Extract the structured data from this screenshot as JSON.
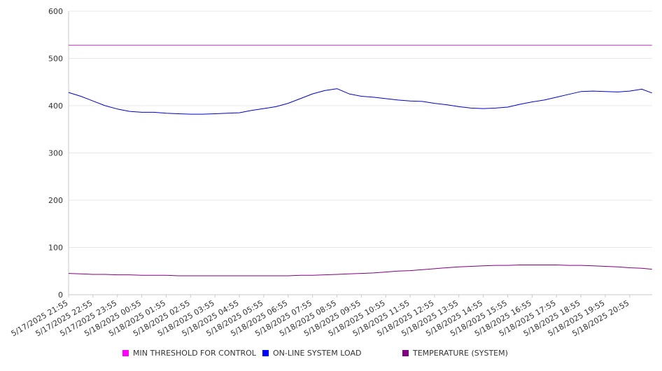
{
  "chart_data": {
    "type": "line",
    "ylim": [
      0,
      600
    ],
    "y_ticks": [
      0,
      100,
      200,
      300,
      400,
      500,
      600
    ],
    "y_tick_labels": [
      "0",
      "100",
      "200",
      "300",
      "400",
      "500",
      "600"
    ],
    "grid": true,
    "legend_position": "bottom",
    "x_tick_labels": [
      "5/17/2025 21:55",
      "5/17/2025 22:55",
      "5/17/2025 23:55",
      "5/18/2025 00:55",
      "5/18/2025 01:55",
      "5/18/2025 02:55",
      "5/18/2025 03:55",
      "5/18/2025 04:55",
      "5/18/2025 05:55",
      "5/18/2025 06:55",
      "5/18/2025 07:55",
      "5/18/2025 08:55",
      "5/18/2025 09:55",
      "5/18/2025 10:55",
      "5/18/2025 11:55",
      "5/18/2025 12:55",
      "5/18/2025 13:55",
      "5/18/2025 14:55",
      "5/18/2025 15:55",
      "5/18/2025 16:55",
      "5/18/2025 17:55",
      "5/18/2025 18:55",
      "5/18/2025 19:55",
      "5/18/2025 20:55"
    ],
    "x": [
      "5/17/2025 21:55",
      "5/17/2025 22:25",
      "5/17/2025 22:55",
      "5/17/2025 23:25",
      "5/17/2025 23:55",
      "5/18/2025 00:25",
      "5/18/2025 00:55",
      "5/18/2025 01:25",
      "5/18/2025 01:55",
      "5/18/2025 02:25",
      "5/18/2025 02:55",
      "5/18/2025 03:25",
      "5/18/2025 03:55",
      "5/18/2025 04:25",
      "5/18/2025 04:55",
      "5/18/2025 05:25",
      "5/18/2025 05:55",
      "5/18/2025 06:25",
      "5/18/2025 06:55",
      "5/18/2025 07:25",
      "5/18/2025 07:55",
      "5/18/2025 08:25",
      "5/18/2025 08:55",
      "5/18/2025 09:25",
      "5/18/2025 09:55",
      "5/18/2025 10:25",
      "5/18/2025 10:55",
      "5/18/2025 11:25",
      "5/18/2025 11:55",
      "5/18/2025 12:25",
      "5/18/2025 12:55",
      "5/18/2025 13:25",
      "5/18/2025 13:55",
      "5/18/2025 14:25",
      "5/18/2025 14:55",
      "5/18/2025 15:25",
      "5/18/2025 15:55",
      "5/18/2025 16:25",
      "5/18/2025 16:55",
      "5/18/2025 17:25",
      "5/18/2025 17:55",
      "5/18/2025 18:25",
      "5/18/2025 18:55",
      "5/18/2025 19:25",
      "5/18/2025 19:55",
      "5/18/2025 20:25",
      "5/18/2025 20:55",
      "5/18/2025 21:25",
      "5/18/2025 21:50"
    ],
    "series": [
      {
        "name": "MIN THRESHOLD FOR CONTROL",
        "color": "#cc33cc",
        "values": [
          528,
          528,
          528,
          528,
          528,
          528,
          528,
          528,
          528,
          528,
          528,
          528,
          528,
          528,
          528,
          528,
          528,
          528,
          528,
          528,
          528,
          528,
          528,
          528,
          528,
          528,
          528,
          528,
          528,
          528,
          528,
          528,
          528,
          528,
          528,
          528,
          528,
          528,
          528,
          528,
          528,
          528,
          528,
          528,
          528,
          528,
          528,
          528,
          528
        ]
      },
      {
        "name": "ON-LINE SYSTEM LOAD",
        "color": "#0000cc",
        "values": [
          428,
          420,
          410,
          400,
          393,
          388,
          386,
          386,
          384,
          383,
          382,
          382,
          383,
          384,
          385,
          390,
          394,
          398,
          405,
          415,
          425,
          432,
          436,
          425,
          420,
          418,
          415,
          412,
          410,
          409,
          405,
          402,
          398,
          395,
          394,
          395,
          397,
          403,
          408,
          412,
          418,
          424,
          430,
          431,
          430,
          429,
          431,
          435,
          427
        ]
      },
      {
        "name": "TEMPERATURE (SYSTEM)",
        "color": "#800080",
        "values": [
          45,
          44,
          43,
          43,
          42,
          42,
          41,
          41,
          41,
          40,
          40,
          40,
          40,
          40,
          40,
          40,
          40,
          40,
          40,
          41,
          41,
          42,
          43,
          44,
          45,
          46,
          48,
          50,
          51,
          53,
          55,
          57,
          59,
          60,
          61,
          62,
          62,
          63,
          63,
          63,
          63,
          62,
          62,
          61,
          60,
          59,
          57,
          56,
          54
        ]
      }
    ]
  }
}
